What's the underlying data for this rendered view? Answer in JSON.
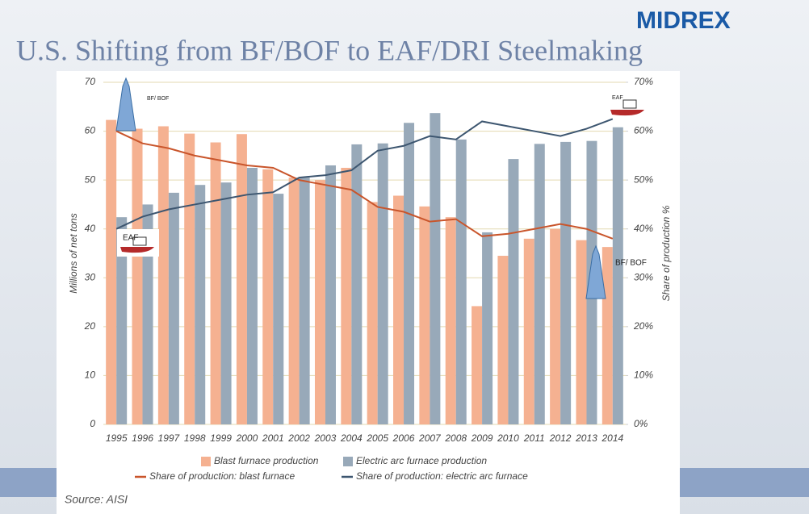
{
  "brand": "MIDREX",
  "chart_data": {
    "type": "bar",
    "title": "U.S. Shifting from BF/BOF to EAF/DRI Steelmaking",
    "ylabel": "Millions of net tons",
    "y2label": "Share of production %",
    "source": "Source: AISI",
    "annotations": [
      "BF/ BOF",
      "EAF",
      "EAF",
      "BF/ BOF"
    ],
    "categories": [
      "1995",
      "1996",
      "1997",
      "1998",
      "1999",
      "2000",
      "2001",
      "2002",
      "2003",
      "2004",
      "2005",
      "2006",
      "2007",
      "2008",
      "2009",
      "2010",
      "2011",
      "2012",
      "2013",
      "2014"
    ],
    "series": [
      {
        "name": "Blast furnace production",
        "type": "bar",
        "color": "#f5b191",
        "values": [
          62.3,
          60.5,
          61,
          59.5,
          57.7,
          59.4,
          52.2,
          50.5,
          50,
          52.5,
          45.5,
          46.8,
          44.6,
          42.4,
          24.2,
          34.5,
          38,
          40,
          37.7,
          36.3
        ]
      },
      {
        "name": "Electric arc furnace production",
        "type": "bar",
        "color": "#98a9b9",
        "values": [
          42.4,
          45,
          47.4,
          49,
          49.5,
          52.5,
          47.2,
          50.5,
          53,
          57.3,
          57.5,
          61.7,
          63.7,
          58.3,
          39.3,
          54.3,
          57.4,
          57.8,
          58,
          60.8
        ]
      },
      {
        "name": "Share of production: blast furnace",
        "type": "line",
        "axis": "y2",
        "color": "#c9552b",
        "values": [
          60,
          57.5,
          56.5,
          55,
          54,
          53,
          52.5,
          50,
          49,
          48,
          44.5,
          43.5,
          41.5,
          42,
          38.5,
          39,
          40,
          41,
          40,
          38
        ]
      },
      {
        "name": "Share of production: electric arc furnace",
        "type": "line",
        "axis": "y2",
        "color": "#3d5670",
        "values": [
          40,
          42.5,
          44,
          45,
          46,
          47,
          47.5,
          50.5,
          51,
          52,
          56,
          57,
          59,
          58.3,
          62,
          61,
          60,
          59,
          60.5,
          62.5
        ]
      }
    ],
    "ylim": [
      0,
      70
    ],
    "yticks": [
      0,
      10,
      20,
      30,
      40,
      50,
      60,
      70
    ],
    "y2lim": [
      0,
      70
    ],
    "y2ticks": [
      {
        "value": 0,
        "label": "0%"
      },
      {
        "value": 10,
        "label": "10%"
      },
      {
        "value": 20,
        "label": "20%"
      },
      {
        "value": 30,
        "label": "30%"
      },
      {
        "value": 40,
        "label": "40%"
      },
      {
        "value": 50,
        "label": "50%"
      },
      {
        "value": 60,
        "label": "60%"
      },
      {
        "value": 70,
        "label": "70%"
      }
    ],
    "grid": true
  }
}
